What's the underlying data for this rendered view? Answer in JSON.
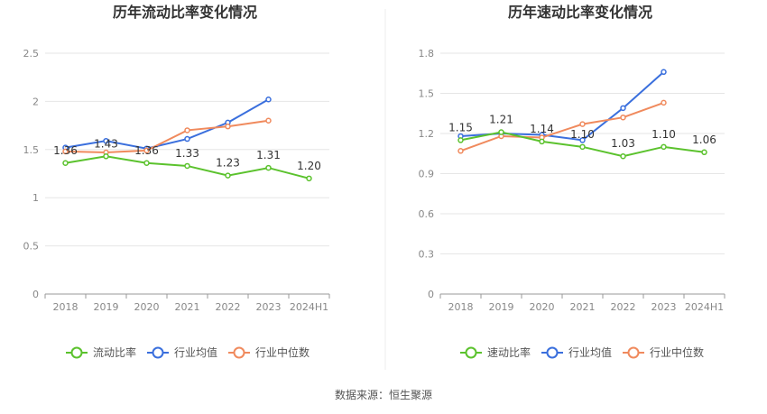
{
  "colors": {
    "company": "#5bc22d",
    "industry_avg": "#3a6fdd",
    "industry_median": "#f08a5d"
  },
  "footer": {
    "source": "数据来源：恒生聚源"
  },
  "chart_data": [
    {
      "type": "line",
      "title": "历年流动比率变化情况",
      "categories": [
        "2018",
        "2019",
        "2020",
        "2021",
        "2022",
        "2023",
        "2024H1"
      ],
      "ylim": [
        0,
        2.5
      ],
      "yticks": [
        "0",
        "0.5",
        "1",
        "1.5",
        "2",
        "2.5"
      ],
      "grid": true,
      "legend_position": "bottom",
      "series": [
        {
          "name": "流动比率",
          "color_key": "company",
          "values": [
            1.36,
            1.43,
            1.36,
            1.33,
            1.23,
            1.31,
            1.2
          ],
          "labels": [
            "1.36",
            "1.43",
            "1.36",
            "1.33",
            "1.23",
            "1.31",
            "1.20"
          ]
        },
        {
          "name": "行业均值",
          "color_key": "industry_avg",
          "values": [
            1.52,
            1.59,
            1.51,
            1.61,
            1.78,
            2.02,
            null
          ]
        },
        {
          "name": "行业中位数",
          "color_key": "industry_median",
          "values": [
            1.48,
            1.47,
            1.49,
            1.7,
            1.74,
            1.8,
            null
          ]
        }
      ]
    },
    {
      "type": "line",
      "title": "历年速动比率变化情况",
      "categories": [
        "2018",
        "2019",
        "2020",
        "2021",
        "2022",
        "2023",
        "2024H1"
      ],
      "ylim": [
        0,
        1.8
      ],
      "yticks": [
        "0",
        "0.3",
        "0.6",
        "0.9",
        "1.2",
        "1.5",
        "1.8"
      ],
      "grid": true,
      "legend_position": "bottom",
      "series": [
        {
          "name": "速动比率",
          "color_key": "company",
          "values": [
            1.15,
            1.21,
            1.14,
            1.1,
            1.03,
            1.1,
            1.06
          ],
          "labels": [
            "1.15",
            "1.21",
            "1.14",
            "1.10",
            "1.03",
            "1.10",
            "1.06"
          ]
        },
        {
          "name": "行业均值",
          "color_key": "industry_avg",
          "values": [
            1.18,
            1.2,
            1.19,
            1.15,
            1.39,
            1.66,
            null
          ]
        },
        {
          "name": "行业中位数",
          "color_key": "industry_median",
          "values": [
            1.07,
            1.18,
            1.17,
            1.27,
            1.32,
            1.43,
            null
          ]
        }
      ]
    }
  ]
}
